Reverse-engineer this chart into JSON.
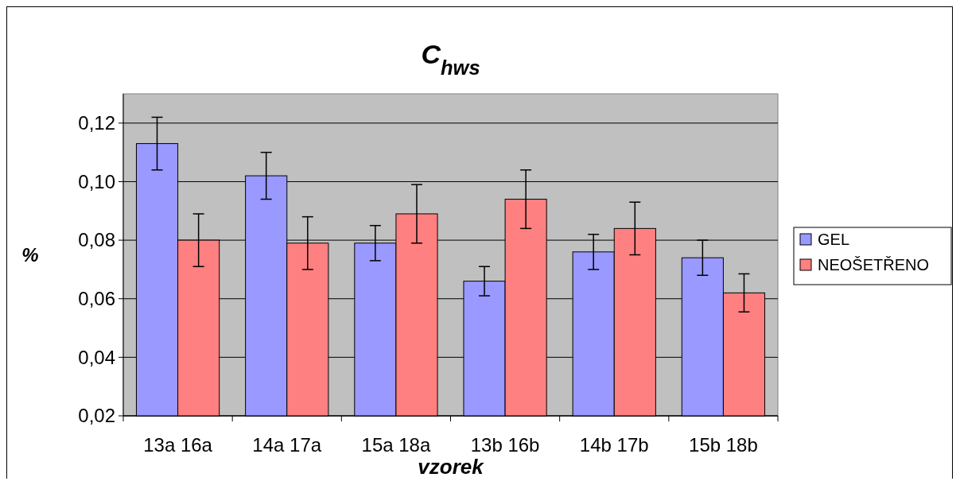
{
  "chart_data": {
    "type": "bar",
    "title": "C$_{hws}$",
    "xlabel": "vzorek",
    "ylabel": "%",
    "categories": [
      "13a 16a",
      "14a 17a",
      "15a 18a",
      "13b 16b",
      "14b 17b",
      "15b 18b"
    ],
    "series": [
      {
        "name": "GEL",
        "color": "#9999ff",
        "values": [
          0.113,
          0.102,
          0.079,
          0.066,
          0.076,
          0.074
        ],
        "errors": [
          0.009,
          0.008,
          0.006,
          0.005,
          0.006,
          0.006
        ]
      },
      {
        "name": "NEOŠETŘENO",
        "color": "#ff8080",
        "values": [
          0.08,
          0.079,
          0.089,
          0.094,
          0.084,
          0.062
        ],
        "errors": [
          0.009,
          0.009,
          0.01,
          0.01,
          0.009,
          0.0065
        ]
      }
    ],
    "ylim": [
      0.02,
      0.13
    ],
    "yticks": [
      {
        "value": 0.02,
        "label": "0,02"
      },
      {
        "value": 0.04,
        "label": "0,04"
      },
      {
        "value": 0.06,
        "label": "0,06"
      },
      {
        "value": 0.08,
        "label": "0,08"
      },
      {
        "value": 0.1,
        "label": "0,10"
      },
      {
        "value": 0.12,
        "label": "0,12"
      }
    ],
    "grid": "y",
    "legend": "right"
  }
}
